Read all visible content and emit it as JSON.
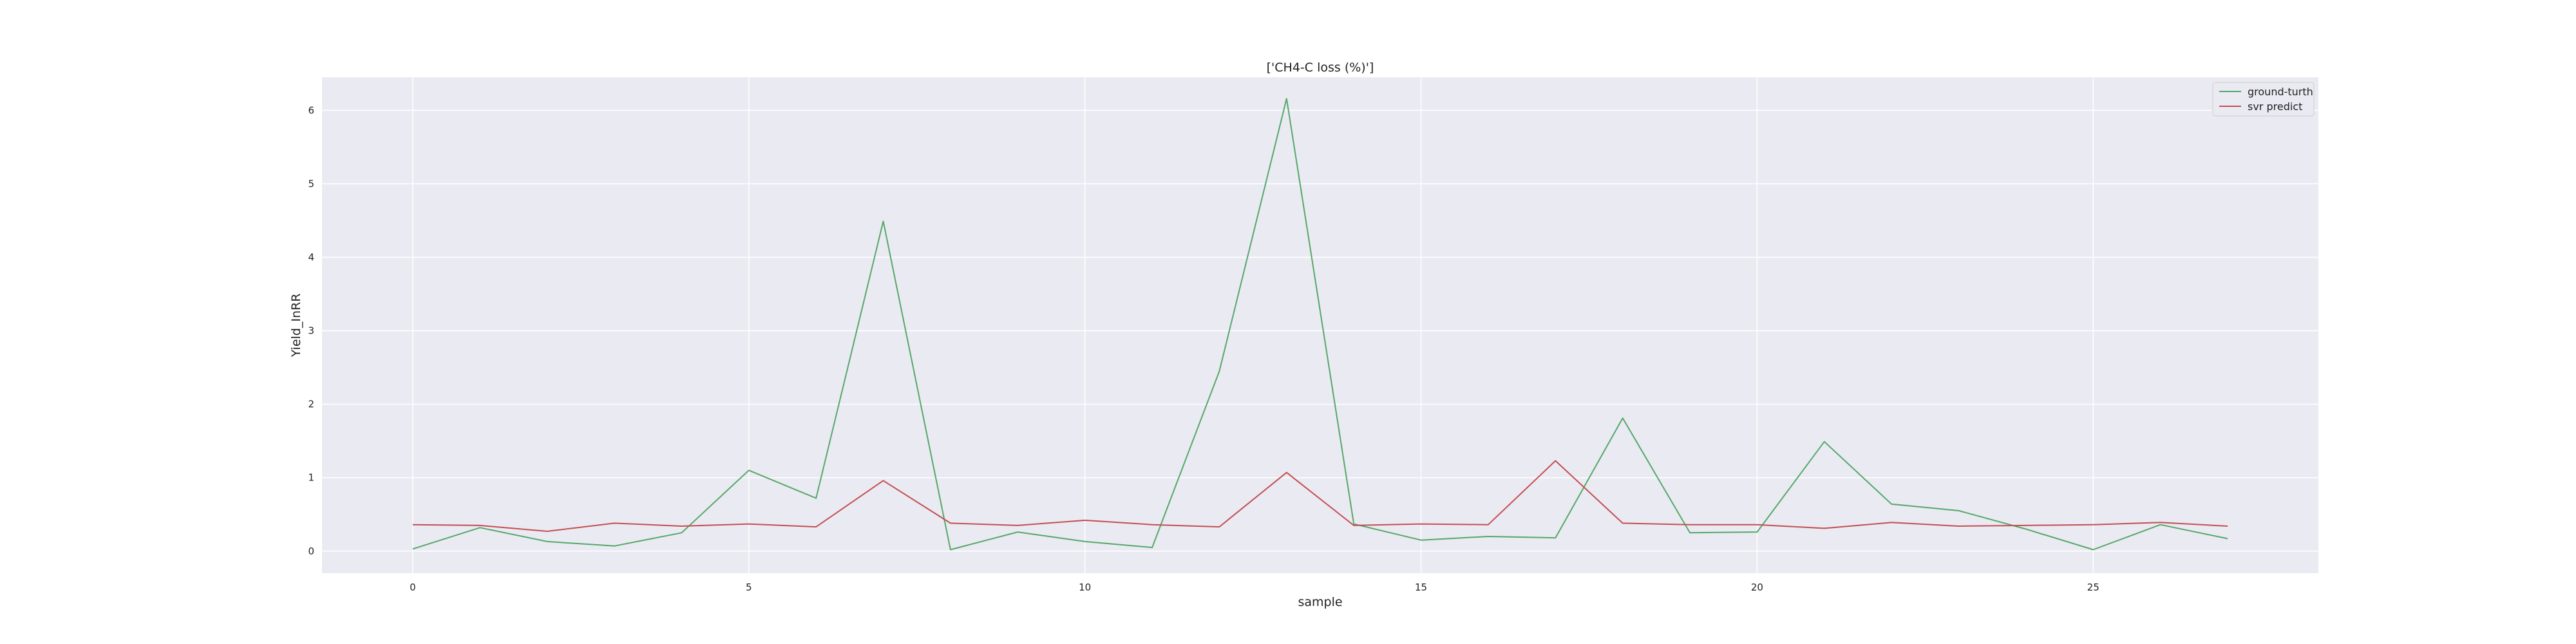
{
  "chart_data": {
    "type": "line",
    "title": "['CH4-C loss (%)']",
    "xlabel": "sample",
    "ylabel": "Yield_InRR",
    "xlim": [
      -1.35,
      28.35
    ],
    "ylim": [
      -0.3,
      6.45
    ],
    "xticks": [
      0,
      5,
      10,
      15,
      20,
      25
    ],
    "yticks": [
      0,
      1,
      2,
      3,
      4,
      5,
      6
    ],
    "grid": true,
    "legend_position": "top-right",
    "x": [
      0,
      1,
      2,
      3,
      4,
      5,
      6,
      7,
      8,
      9,
      10,
      11,
      12,
      13,
      14,
      15,
      16,
      17,
      18,
      19,
      20,
      21,
      22,
      23,
      24,
      25,
      26,
      27
    ],
    "series": [
      {
        "name": "ground-turth",
        "color": "#55a868",
        "values": [
          0.03,
          0.32,
          0.13,
          0.07,
          0.25,
          1.1,
          0.72,
          4.49,
          0.02,
          0.26,
          0.13,
          0.05,
          2.45,
          6.16,
          0.37,
          0.15,
          0.2,
          0.18,
          1.81,
          0.25,
          0.26,
          1.49,
          0.64,
          0.55,
          0.3,
          0.02,
          0.36,
          0.17
        ]
      },
      {
        "name": "svr predict",
        "color": "#c44e52",
        "values": [
          0.36,
          0.35,
          0.27,
          0.38,
          0.34,
          0.37,
          0.33,
          0.96,
          0.38,
          0.35,
          0.42,
          0.36,
          0.33,
          1.07,
          0.35,
          0.37,
          0.36,
          1.23,
          0.38,
          0.36,
          0.36,
          0.31,
          0.39,
          0.34,
          0.35,
          0.36,
          0.39,
          0.34
        ]
      }
    ]
  }
}
